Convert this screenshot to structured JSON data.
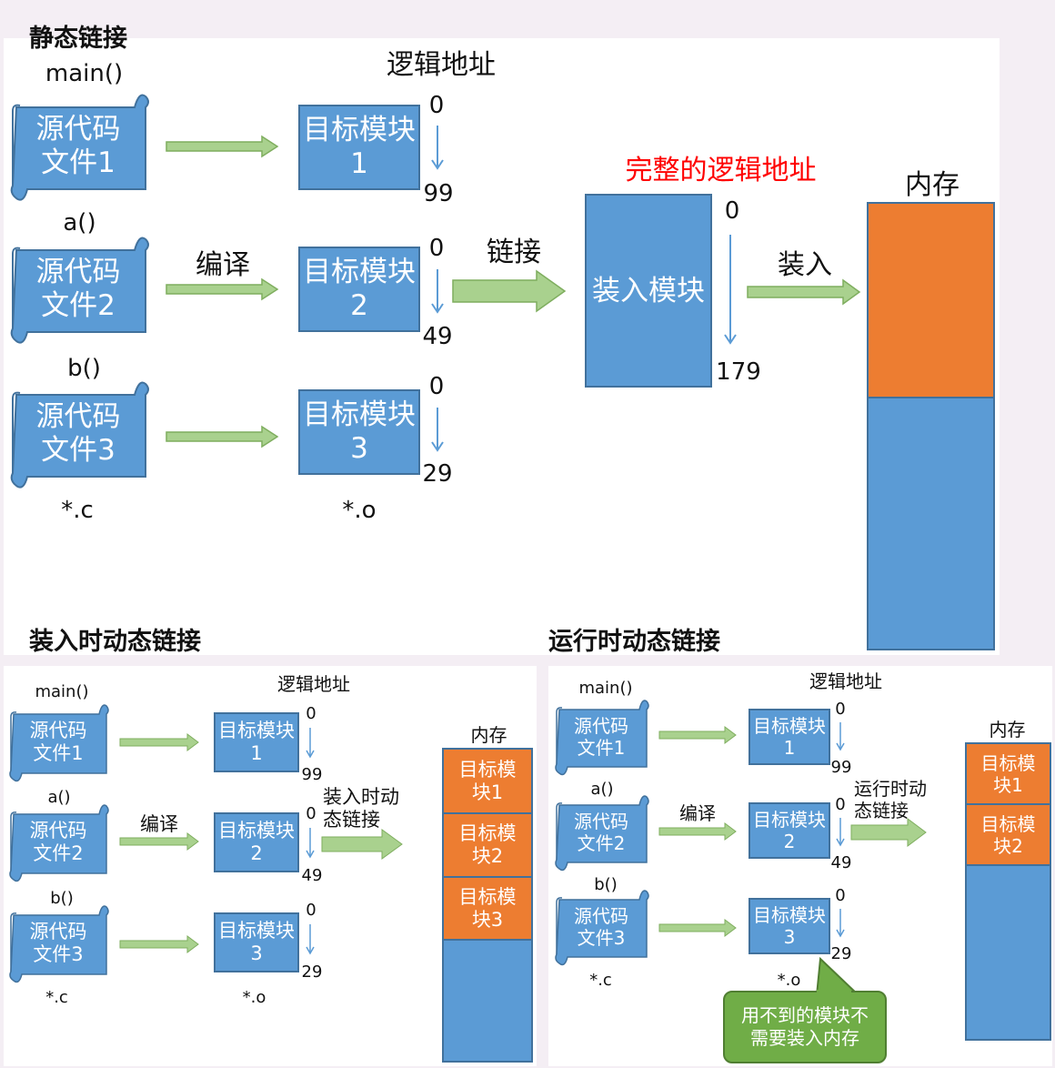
{
  "static": {
    "title": "静态链接",
    "logical_address": "逻辑地址",
    "full_logical_address": "完整的逻辑地址",
    "memory": "内存",
    "compile": "编译",
    "link": "链接",
    "load": "装入",
    "source_ext": "*.c",
    "object_ext": "*.o",
    "functions": [
      "main()",
      "a()",
      "b()"
    ],
    "sources": [
      [
        "源代码",
        "文件1"
      ],
      [
        "源代码",
        "文件2"
      ],
      [
        "源代码",
        "文件3"
      ]
    ],
    "objects": [
      [
        "目标模",
        "块1"
      ],
      [
        "目标模",
        "块2"
      ],
      [
        "目标模",
        "块3"
      ]
    ],
    "ranges": [
      [
        "0",
        "99"
      ],
      [
        "0",
        "49"
      ],
      [
        "0",
        "29"
      ]
    ],
    "load_module": [
      "装入",
      "模块"
    ],
    "load_range": [
      "0",
      "179"
    ]
  },
  "load_time": {
    "title": "装入时动态链接",
    "logical_address": "逻辑地址",
    "memory": "内存",
    "compile": "编译",
    "link_label": [
      "装入时动",
      "态链接"
    ],
    "source_ext": "*.c",
    "object_ext": "*.o",
    "functions": [
      "main()",
      "a()",
      "b()"
    ],
    "sources": [
      [
        "源代码",
        "文件1"
      ],
      [
        "源代码",
        "文件2"
      ],
      [
        "源代码",
        "文件3"
      ]
    ],
    "objects": [
      [
        "目标模",
        "块1"
      ],
      [
        "目标模",
        "块2"
      ],
      [
        "目标模",
        "块3"
      ]
    ],
    "ranges": [
      [
        "0",
        "99"
      ],
      [
        "0",
        "49"
      ],
      [
        "0",
        "29"
      ]
    ],
    "memory_blocks": [
      [
        "目标模",
        "块1"
      ],
      [
        "目标模",
        "块2"
      ],
      [
        "目标模",
        "块3"
      ]
    ]
  },
  "run_time": {
    "title": "运行时动态链接",
    "logical_address": "逻辑地址",
    "memory": "内存",
    "compile": "编译",
    "link_label": [
      "运行时动",
      "态链接"
    ],
    "source_ext": "*.c",
    "object_ext": "*.o",
    "functions": [
      "main()",
      "a()",
      "b()"
    ],
    "sources": [
      [
        "源代码",
        "文件1"
      ],
      [
        "源代码",
        "文件2"
      ],
      [
        "源代码",
        "文件3"
      ]
    ],
    "objects": [
      [
        "目标模",
        "块1"
      ],
      [
        "目标模",
        "块2"
      ],
      [
        "目标模",
        "块3"
      ]
    ],
    "ranges": [
      [
        "0",
        "99"
      ],
      [
        "0",
        "49"
      ],
      [
        "0",
        "29"
      ]
    ],
    "memory_blocks": [
      [
        "目标模",
        "块1"
      ],
      [
        "目标模",
        "块2"
      ]
    ],
    "callout": [
      "用不到的模块不",
      "需要装入内存"
    ]
  },
  "colors": {
    "module_blue": "#5b9bd5",
    "memory_orange": "#ed7d31",
    "arrow_green": "#a9d18e",
    "callout_green": "#70ad47",
    "highlight_red": "#ff0000"
  }
}
